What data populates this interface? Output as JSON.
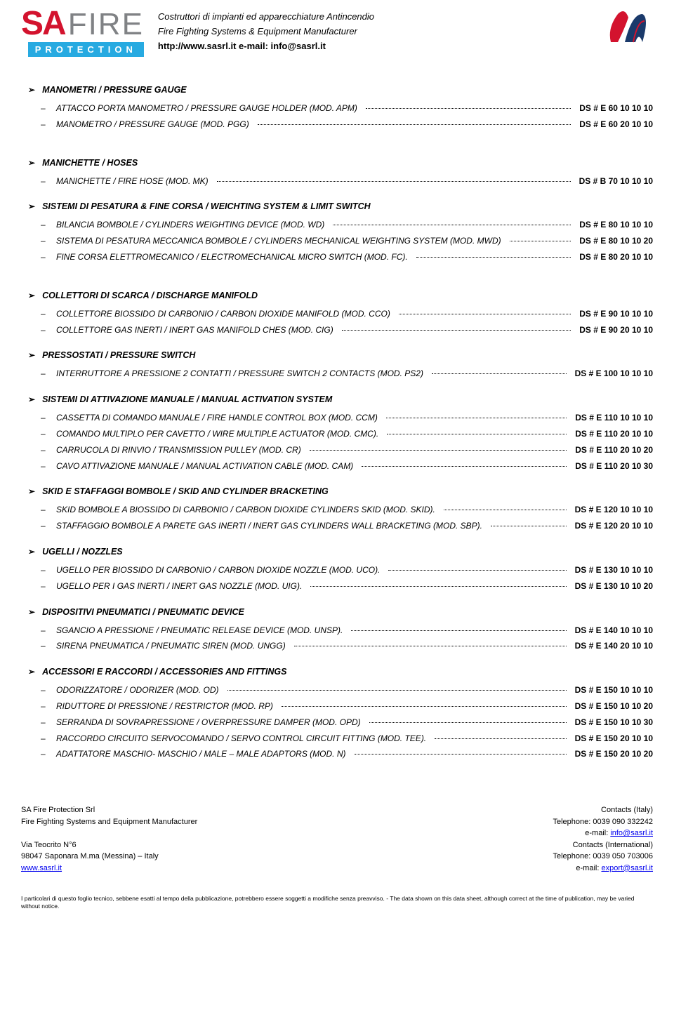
{
  "header": {
    "logo_sa": "SA",
    "logo_fire": "FIRE",
    "logo_protection": "PROTECTION",
    "line1": "Costruttori di impianti ed apparecchiature Antincendio",
    "line2": "Fire Fighting Systems & Equipment Manufacturer",
    "line3": "http://www.sasrl.it    e-mail: info@sasrl.it"
  },
  "sections": [
    {
      "title": "MANOMETRI / PRESSURE GAUGE",
      "spaced": true,
      "items": [
        {
          "desc": "ATTACCO PORTA MANOMETRO / PRESSURE GAUGE HOLDER (MOD. APM)",
          "code": "DS # E 60 10 10 10"
        },
        {
          "desc": "MANOMETRO / PRESSURE GAUGE (MOD. PGG)",
          "code": "DS # E 60 20 10 10"
        }
      ]
    },
    {
      "title": "MANICHETTE / HOSES",
      "spaced": false,
      "items": [
        {
          "desc": "MANICHETTE / FIRE HOSE (MOD. MK)",
          "code": "DS # B 70 10 10 10"
        }
      ]
    },
    {
      "title": "SISTEMI DI PESATURA & FINE CORSA / WEICHTING SYSTEM & LIMIT SWITCH",
      "spaced": true,
      "items": [
        {
          "desc": "BILANCIA BOMBOLE / CYLINDERS WEIGHTING DEVICE (MOD. WD)",
          "code": "DS # E 80 10 10 10"
        },
        {
          "desc": "SISTEMA DI PESATURA MECCANICA BOMBOLE / CYLINDERS MECHANICAL WEIGHTING SYSTEM (MOD. MWD)",
          "code": "DS # E 80 10 10 20",
          "multiline": true
        },
        {
          "desc": "FINE CORSA ELETTROMECANICO / ELECTROMECHANICAL MICRO SWITCH (MOD. FC).",
          "code": "DS # E 80 20 10 10"
        }
      ]
    },
    {
      "title": "COLLETTORI DI SCARCA / DISCHARGE MANIFOLD",
      "spaced": false,
      "items": [
        {
          "desc": "COLLETTORE BIOSSIDO DI CARBONIO / CARBON DIOXIDE MANIFOLD (MOD. CCO)",
          "code": "DS # E 90 10 10 10"
        },
        {
          "desc": "COLLETTORE GAS INERTI / INERT GAS MANIFOLD CHES (MOD. CIG)",
          "code": "DS # E 90 20 10 10"
        }
      ]
    },
    {
      "title": "PRESSOSTATI / PRESSURE SWITCH",
      "spaced": false,
      "items": [
        {
          "desc": "INTERRUTTORE A PRESSIONE 2 CONTATTI / PRESSURE SWITCH 2 CONTACTS (MOD. PS2)",
          "code": "DS # E 100 10 10 10"
        }
      ]
    },
    {
      "title": "SISTEMI DI ATTIVAZIONE MANUALE / MANUAL ACTIVATION SYSTEM",
      "spaced": false,
      "items": [
        {
          "desc": "CASSETTA DI COMANDO MANUALE / FIRE HANDLE CONTROL BOX (MOD. CCM)",
          "code": "DS # E 110 10 10 10"
        },
        {
          "desc": "COMANDO MULTIPLO PER CAVETTO / WIRE MULTIPLE ACTUATOR (MOD. CMC).",
          "code": "DS # E 110 20 10 10"
        },
        {
          "desc": "CARRUCOLA DI RINVIO / TRANSMISSION PULLEY (MOD. CR)",
          "code": "DS # E 110 20 10 20"
        },
        {
          "desc": "CAVO ATTIVAZIONE MANUALE / MANUAL ACTIVATION CABLE (MOD. CAM)",
          "code": "DS # E 110 20 10 30"
        }
      ]
    },
    {
      "title": "SKID E STAFFAGGI BOMBOLE / SKID AND CYLINDER BRACKETING",
      "spaced": false,
      "items": [
        {
          "desc": "SKID BOMBOLE A BIOSSIDO DI CARBONIO / CARBON DIOXIDE CYLINDERS SKID (MOD. SKID).",
          "code": "DS # E 120 10 10 10"
        },
        {
          "desc": "STAFFAGGIO BOMBOLE A PARETE GAS INERTI / INERT GAS CYLINDERS WALL BRACKETING (MOD. SBP).",
          "code": "DS # E 120 20 10 10"
        }
      ]
    },
    {
      "title": "UGELLI / NOZZLES",
      "spaced": false,
      "items": [
        {
          "desc": "UGELLO PER BIOSSIDO DI CARBONIO / CARBON DIOXIDE NOZZLE (MOD. UCO).",
          "code": "DS # E 130 10 10 10"
        },
        {
          "desc": "UGELLO PER I GAS INERTI / INERT GAS NOZZLE (MOD. UIG).",
          "code": "DS # E 130 10 10 20"
        }
      ]
    },
    {
      "title": "DISPOSITIVI PNEUMATICI / PNEUMATIC DEVICE",
      "spaced": false,
      "items": [
        {
          "desc": "SGANCIO A PRESSIONE / PNEUMATIC RELEASE DEVICE (MOD. UNSP).",
          "code": "DS # E 140 10 10 10"
        },
        {
          "desc": "SIRENA PNEUMATICA / PNEUMATIC SIREN (MOD. UNGG)",
          "code": "DS # E 140 20 10 10"
        }
      ]
    },
    {
      "title": "ACCESSORI E RACCORDI / ACCESSORIES AND FITTINGS",
      "spaced": false,
      "items": [
        {
          "desc": "ODORIZZATORE / ODORIZER (MOD. OD)",
          "code": "DS # E 150 10 10 10"
        },
        {
          "desc": "RIDUTTORE DI PRESSIONE / RESTRICTOR (MOD. RP)",
          "code": "DS # E 150 10 10 20"
        },
        {
          "desc": "SERRANDA DI SOVRAPRESSIONE / OVERPRESSURE DAMPER (MOD. OPD)",
          "code": "DS # E 150 10 10 30"
        },
        {
          "desc": "RACCORDO CIRCUITO SERVOCOMANDO / SERVO CONTROL CIRCUIT FITTING (MOD. TEE).",
          "code": "DS # E 150 20 10 10"
        },
        {
          "desc": "ADATTATORE MASCHIO- MASCHIO / MALE – MALE ADAPTORS (MOD. N)",
          "code": "DS # E 150 20 10 20"
        }
      ]
    }
  ],
  "footer": {
    "left": {
      "l1": "SA Fire Protection Srl",
      "l2": "Fire Fighting Systems and Equipment Manufacturer",
      "l3": "",
      "l4": "Via Teocrito N°6",
      "l5": "98047 Saponara M.ma (Messina) – Italy",
      "l6_link": "www.sasrl.it"
    },
    "right": {
      "r1": "Contacts (Italy)",
      "r2": "Telephone: 0039 090 332242",
      "r3_prefix": "e-mail: ",
      "r3_link": "info@sasrl.it",
      "r4": "Contacts (International)",
      "r5": "Telephone: 0039 050 703006",
      "r6_prefix": "e-mail: ",
      "r6_link": "export@sasrl.it"
    }
  },
  "disclaimer": "I particolari di questo foglio tecnico, sebbene esatti al tempo della pubblicazione, potrebbero essere soggetti a modifiche senza preavviso. - The data shown on this data sheet, although correct at the time of publication, may be varied without notice."
}
